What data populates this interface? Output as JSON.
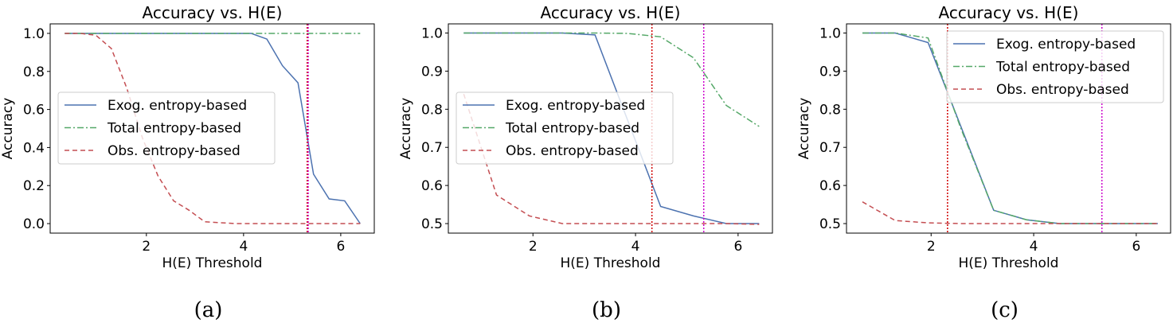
{
  "chart_data": [
    {
      "type": "line",
      "title": "Accuracy vs. H(E)",
      "xlabel": "H(E) Threshold",
      "ylabel": "Accuracy",
      "caption": "(a)",
      "xlim": [
        0.02,
        6.69
      ],
      "ylim": [
        -0.05,
        1.05
      ],
      "xticks": [
        2,
        4,
        6
      ],
      "yticks": [
        0.0,
        0.2,
        0.4,
        0.6,
        0.8,
        1.0
      ],
      "ytick_labels": [
        "0.0",
        "0.2",
        "0.4",
        "0.6",
        "0.8",
        "1.0"
      ],
      "grid": false,
      "legend_position": "center-left",
      "x": [
        0.32,
        0.64,
        0.96,
        1.28,
        1.6,
        1.92,
        2.24,
        2.56,
        2.88,
        3.2,
        3.52,
        3.84,
        4.16,
        4.48,
        4.8,
        5.12,
        5.44,
        5.76,
        6.08,
        6.4
      ],
      "series": [
        {
          "name": "Exog. entropy-based",
          "color": "#4c72b0",
          "style": "solid",
          "values": [
            1,
            1,
            1,
            1,
            1,
            1,
            1,
            1,
            1,
            1,
            1,
            1,
            1,
            0.97,
            0.83,
            0.74,
            0.26,
            0.13,
            0.12,
            0.0
          ]
        },
        {
          "name": "Total entropy-based",
          "color": "#55a868",
          "style": "dashdot",
          "values": [
            1,
            1,
            1,
            1,
            1,
            1,
            1,
            1,
            1,
            1,
            1,
            1,
            1,
            1,
            1,
            1,
            1,
            1,
            1,
            1
          ]
        },
        {
          "name": "Obs. entropy-based",
          "color": "#c44e52",
          "style": "dashed",
          "values": [
            1,
            1,
            0.99,
            0.92,
            0.71,
            0.45,
            0.25,
            0.12,
            0.07,
            0.01,
            0.005,
            0.0,
            0.0,
            0.0,
            0.0,
            0.0,
            0.0,
            0.0,
            0.0,
            0.0
          ]
        }
      ],
      "vlines": [
        {
          "x": 5.31,
          "color": "#d00000"
        },
        {
          "x": 5.33,
          "color": "#cc00cc"
        }
      ]
    },
    {
      "type": "line",
      "title": "Accuracy vs. H(E)",
      "xlabel": "H(E) Threshold",
      "ylabel": "Accuracy",
      "caption": "(b)",
      "xlim": [
        0.35,
        6.67
      ],
      "ylim": [
        0.475,
        1.024
      ],
      "xticks": [
        2,
        4,
        6
      ],
      "yticks": [
        0.5,
        0.6,
        0.7,
        0.8,
        0.9,
        1.0
      ],
      "ytick_labels": [
        "0.5",
        "0.6",
        "0.7",
        "0.8",
        "0.9",
        "1.0"
      ],
      "grid": false,
      "legend_position": "center-left",
      "x": [
        0.65,
        1.29,
        1.93,
        2.57,
        3.21,
        3.85,
        4.49,
        5.13,
        5.77,
        6.41
      ],
      "series": [
        {
          "name": "Exog. entropy-based",
          "color": "#4c72b0",
          "style": "solid",
          "values": [
            1,
            1,
            1,
            1,
            0.995,
            0.77,
            0.545,
            0.52,
            0.5,
            0.5
          ]
        },
        {
          "name": "Total entropy-based",
          "color": "#55a868",
          "style": "dashdot",
          "values": [
            1,
            1,
            1,
            1,
            1,
            0.999,
            0.99,
            0.935,
            0.81,
            0.755
          ]
        },
        {
          "name": "Obs. entropy-based",
          "color": "#c44e52",
          "style": "dashed",
          "values": [
            0.84,
            0.575,
            0.52,
            0.5,
            0.5,
            0.5,
            0.5,
            0.5,
            0.5,
            0.498
          ]
        }
      ],
      "vlines": [
        {
          "x": 4.32,
          "color": "#d00000"
        },
        {
          "x": 5.33,
          "color": "#cc00cc"
        }
      ]
    },
    {
      "type": "line",
      "title": "Accuracy vs. H(E)",
      "xlabel": "H(E) Threshold",
      "ylabel": "Accuracy",
      "caption": "(c)",
      "xlim": [
        0.35,
        6.67
      ],
      "ylim": [
        0.475,
        1.024
      ],
      "xticks": [
        2,
        4,
        6
      ],
      "yticks": [
        0.5,
        0.6,
        0.7,
        0.8,
        0.9,
        1.0
      ],
      "ytick_labels": [
        "0.5",
        "0.6",
        "0.7",
        "0.8",
        "0.9",
        "1.0"
      ],
      "grid": false,
      "legend_position": "upper-right",
      "x": [
        0.66,
        1.3,
        1.94,
        2.58,
        3.22,
        3.86,
        4.5,
        5.14,
        5.78,
        6.42
      ],
      "series": [
        {
          "name": "Exog. entropy-based",
          "color": "#4c72b0",
          "style": "solid",
          "values": [
            1,
            1,
            0.975,
            0.755,
            0.535,
            0.51,
            0.5,
            0.5,
            0.5,
            0.5
          ]
        },
        {
          "name": "Total entropy-based",
          "color": "#55a868",
          "style": "dashdot",
          "values": [
            1,
            1,
            0.987,
            0.75,
            0.535,
            0.51,
            0.5,
            0.5,
            0.5,
            0.5
          ]
        },
        {
          "name": "Obs. entropy-based",
          "color": "#c44e52",
          "style": "dashed",
          "values": [
            0.557,
            0.508,
            0.502,
            0.5,
            0.5,
            0.5,
            0.5,
            0.5,
            0.5,
            0.5
          ]
        }
      ],
      "vlines": [
        {
          "x": 2.32,
          "color": "#d00000"
        },
        {
          "x": 5.33,
          "color": "#cc00cc"
        }
      ]
    }
  ]
}
